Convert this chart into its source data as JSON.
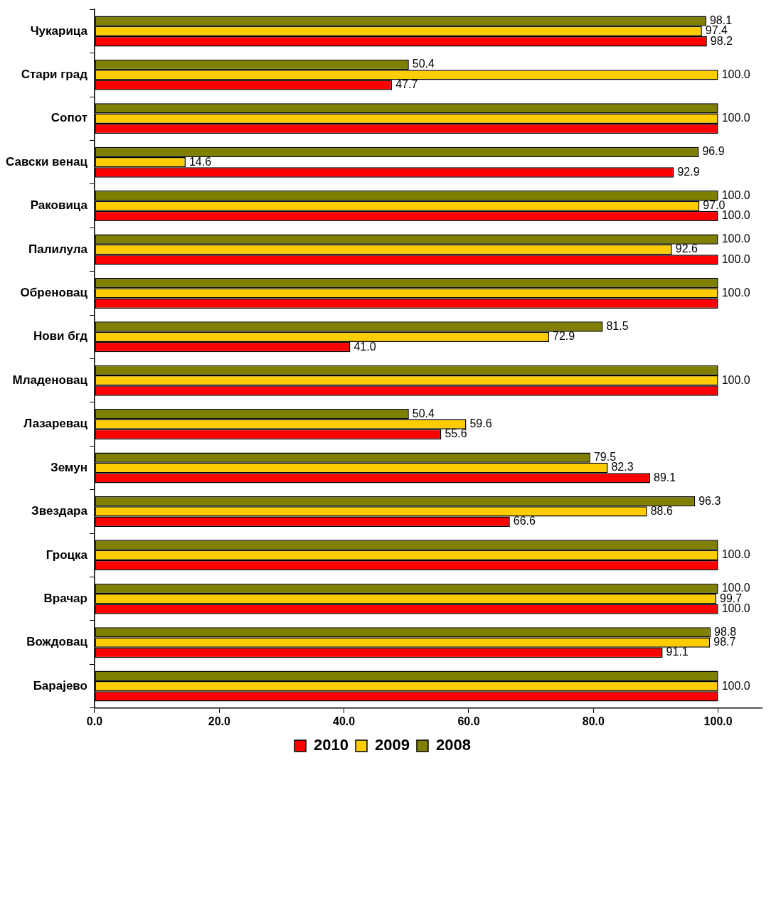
{
  "chart_data": {
    "type": "bar",
    "orientation": "horizontal",
    "categories": [
      "Чукарица",
      "Стари град",
      "Сопот",
      "Савски венац",
      "Раковица",
      "Палилула",
      "Обреновац",
      "Нови бгд",
      "Младеновац",
      "Лазаревац",
      "Земун",
      "Звездара",
      "Гроцка",
      "Врачар",
      "Вождовац",
      "Барајево"
    ],
    "series": [
      {
        "name": "2008",
        "color": "#808000",
        "values": [
          98.1,
          50.4,
          100,
          96.9,
          100,
          100,
          100,
          81.5,
          100,
          50.4,
          79.5,
          96.3,
          100,
          100,
          98.8,
          100
        ],
        "value_labels": [
          "98.1",
          "50.4",
          null,
          "96.9",
          "100.0",
          "100.0",
          null,
          "81.5",
          null,
          "50.4",
          "79.5",
          "96.3",
          null,
          "100.0",
          "98.8",
          null
        ]
      },
      {
        "name": "2009",
        "color": "#ffcc00",
        "values": [
          97.4,
          100,
          100,
          14.6,
          97.0,
          92.6,
          100,
          72.9,
          100,
          59.6,
          82.3,
          88.6,
          100,
          99.7,
          98.7,
          100
        ],
        "value_labels": [
          "97.4",
          "100.0",
          "100.0",
          "14.6",
          "97.0",
          "92.6",
          "100.0",
          "72.9",
          "100.0",
          "59.6",
          "82.3",
          "88.6",
          "100.0",
          "99.7",
          "98.7",
          "100.0"
        ]
      },
      {
        "name": "2010",
        "color": "#ff0000",
        "values": [
          98.2,
          47.7,
          100,
          92.9,
          100,
          100,
          100,
          41.0,
          100,
          55.6,
          89.1,
          66.6,
          100,
          100,
          91.1,
          100
        ],
        "value_labels": [
          "98.2",
          "47.7",
          null,
          "92.9",
          "100.0",
          "100.0",
          null,
          "41.0",
          null,
          "55.6",
          "89.1",
          "66.6",
          null,
          "100.0",
          "91.1",
          null
        ]
      }
    ],
    "xlim": [
      0,
      107
    ],
    "xticks": [
      {
        "value": 0,
        "label": "0.0"
      },
      {
        "value": 20,
        "label": "20.0"
      },
      {
        "value": 40,
        "label": "40.0"
      },
      {
        "value": 60,
        "label": "60.0"
      },
      {
        "value": 80,
        "label": "80.0"
      },
      {
        "value": 100,
        "label": "100.0"
      }
    ],
    "grid": false,
    "legend": "bottom"
  }
}
